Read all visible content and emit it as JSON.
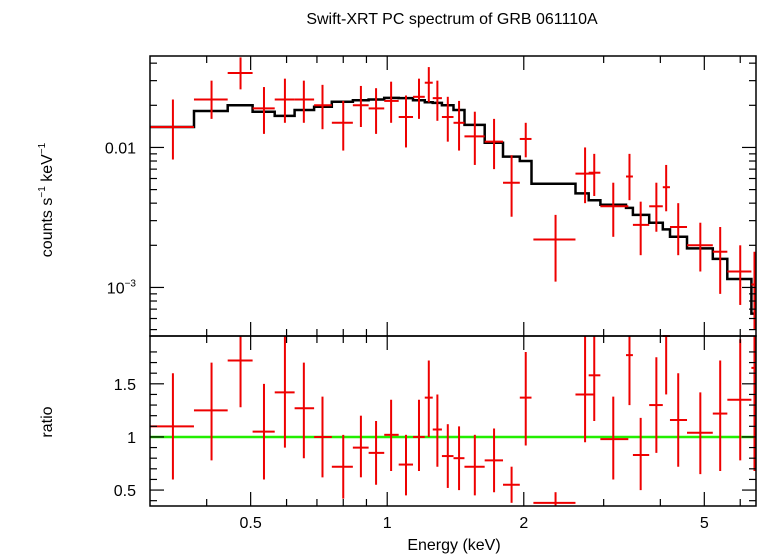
{
  "chart_data": [
    {
      "type": "scatter",
      "panel": "spectrum",
      "title": "Swift-XRT PC spectrum of GRB 061110A",
      "xlabel": "",
      "ylabel_main": "counts s",
      "ylabel_sup1": "−1",
      "ylabel_mid": " keV",
      "ylabel_sup2": "−1",
      "x_scale": "log",
      "y_scale": "log",
      "xlim": [
        0.3,
        6.5
      ],
      "ylim": [
        0.00045,
        0.045
      ],
      "y_ticks": [
        {
          "value": 0.01,
          "label": "0.01",
          "sup": ""
        },
        {
          "value": 0.001,
          "label": "10",
          "sup": "−3"
        }
      ],
      "data_color": "#ee0000",
      "model_color": "#000000",
      "series": [
        {
          "name": "data",
          "points": [
            {
              "x": 0.337,
              "xlo": 0.3,
              "xhi": 0.375,
              "y": 0.014,
              "ylo": 0.0082,
              "yhi": 0.022
            },
            {
              "x": 0.41,
              "xlo": 0.375,
              "xhi": 0.445,
              "y": 0.022,
              "ylo": 0.016,
              "yhi": 0.03
            },
            {
              "x": 0.475,
              "xlo": 0.445,
              "xhi": 0.505,
              "y": 0.034,
              "ylo": 0.026,
              "yhi": 0.044
            },
            {
              "x": 0.535,
              "xlo": 0.505,
              "xhi": 0.565,
              "y": 0.019,
              "ylo": 0.0125,
              "yhi": 0.027
            },
            {
              "x": 0.595,
              "xlo": 0.565,
              "xhi": 0.625,
              "y": 0.022,
              "ylo": 0.015,
              "yhi": 0.031
            },
            {
              "x": 0.655,
              "xlo": 0.625,
              "xhi": 0.69,
              "y": 0.022,
              "ylo": 0.015,
              "yhi": 0.03
            },
            {
              "x": 0.72,
              "xlo": 0.69,
              "xhi": 0.755,
              "y": 0.02,
              "ylo": 0.0135,
              "yhi": 0.028
            },
            {
              "x": 0.8,
              "xlo": 0.755,
              "xhi": 0.84,
              "y": 0.015,
              "ylo": 0.0095,
              "yhi": 0.0215
            },
            {
              "x": 0.875,
              "xlo": 0.84,
              "xhi": 0.91,
              "y": 0.02,
              "ylo": 0.014,
              "yhi": 0.0275
            },
            {
              "x": 0.945,
              "xlo": 0.91,
              "xhi": 0.985,
              "y": 0.019,
              "ylo": 0.0125,
              "yhi": 0.0265
            },
            {
              "x": 1.02,
              "xlo": 0.985,
              "xhi": 1.06,
              "y": 0.0215,
              "ylo": 0.015,
              "yhi": 0.0295
            },
            {
              "x": 1.1,
              "xlo": 1.06,
              "xhi": 1.14,
              "y": 0.0165,
              "ylo": 0.01,
              "yhi": 0.0235
            },
            {
              "x": 1.175,
              "xlo": 1.14,
              "xhi": 1.21,
              "y": 0.023,
              "ylo": 0.016,
              "yhi": 0.031
            },
            {
              "x": 1.235,
              "xlo": 1.21,
              "xhi": 1.26,
              "y": 0.029,
              "ylo": 0.021,
              "yhi": 0.0375
            },
            {
              "x": 1.29,
              "xlo": 1.26,
              "xhi": 1.32,
              "y": 0.0225,
              "ylo": 0.0155,
              "yhi": 0.03
            },
            {
              "x": 1.36,
              "xlo": 1.32,
              "xhi": 1.4,
              "y": 0.0165,
              "ylo": 0.011,
              "yhi": 0.023
            },
            {
              "x": 1.44,
              "xlo": 1.4,
              "xhi": 1.48,
              "y": 0.015,
              "ylo": 0.0095,
              "yhi": 0.0215
            },
            {
              "x": 1.56,
              "xlo": 1.48,
              "xhi": 1.64,
              "y": 0.012,
              "ylo": 0.0075,
              "yhi": 0.018
            },
            {
              "x": 1.72,
              "xlo": 1.64,
              "xhi": 1.8,
              "y": 0.011,
              "ylo": 0.007,
              "yhi": 0.016
            },
            {
              "x": 1.88,
              "xlo": 1.8,
              "xhi": 1.96,
              "y": 0.0056,
              "ylo": 0.0032,
              "yhi": 0.0088
            },
            {
              "x": 2.02,
              "xlo": 1.96,
              "xhi": 2.08,
              "y": 0.0115,
              "ylo": 0.0085,
              "yhi": 0.015
            },
            {
              "x": 2.35,
              "xlo": 2.1,
              "xhi": 2.6,
              "y": 0.0022,
              "ylo": 0.0011,
              "yhi": 0.0033
            },
            {
              "x": 2.73,
              "xlo": 2.6,
              "xhi": 2.85,
              "y": 0.0065,
              "ylo": 0.004,
              "yhi": 0.01
            },
            {
              "x": 2.86,
              "xlo": 2.78,
              "xhi": 2.95,
              "y": 0.0066,
              "ylo": 0.0045,
              "yhi": 0.009
            },
            {
              "x": 3.15,
              "xlo": 2.95,
              "xhi": 3.4,
              "y": 0.0038,
              "ylo": 0.0023,
              "yhi": 0.0056
            },
            {
              "x": 3.42,
              "xlo": 3.36,
              "xhi": 3.48,
              "y": 0.0062,
              "ylo": 0.0042,
              "yhi": 0.009
            },
            {
              "x": 3.62,
              "xlo": 3.48,
              "xhi": 3.78,
              "y": 0.0028,
              "ylo": 0.0017,
              "yhi": 0.0041
            },
            {
              "x": 3.92,
              "xlo": 3.78,
              "xhi": 4.05,
              "y": 0.0038,
              "ylo": 0.0025,
              "yhi": 0.0056
            },
            {
              "x": 4.12,
              "xlo": 4.05,
              "xhi": 4.2,
              "y": 0.0052,
              "ylo": 0.0035,
              "yhi": 0.0075
            },
            {
              "x": 4.38,
              "xlo": 4.2,
              "xhi": 4.58,
              "y": 0.0027,
              "ylo": 0.0017,
              "yhi": 0.004
            },
            {
              "x": 4.9,
              "xlo": 4.58,
              "xhi": 5.22,
              "y": 0.002,
              "ylo": 0.0013,
              "yhi": 0.0029
            },
            {
              "x": 5.42,
              "xlo": 5.22,
              "xhi": 5.62,
              "y": 0.0018,
              "ylo": 0.0009,
              "yhi": 0.0027
            },
            {
              "x": 6.0,
              "xlo": 5.62,
              "xhi": 6.35,
              "y": 0.0013,
              "ylo": 0.00075,
              "yhi": 0.002
            },
            {
              "x": 6.45,
              "xlo": 6.35,
              "xhi": 6.5,
              "y": 0.00105,
              "ylo": 0.0005,
              "yhi": 0.0018
            }
          ]
        },
        {
          "name": "model",
          "steps": [
            {
              "x0": 0.3,
              "x1": 0.375,
              "y": 0.014
            },
            {
              "x0": 0.375,
              "x1": 0.445,
              "y": 0.0182
            },
            {
              "x0": 0.445,
              "x1": 0.505,
              "y": 0.02
            },
            {
              "x0": 0.505,
              "x1": 0.565,
              "y": 0.018
            },
            {
              "x0": 0.565,
              "x1": 0.625,
              "y": 0.0168
            },
            {
              "x0": 0.625,
              "x1": 0.69,
              "y": 0.0185
            },
            {
              "x0": 0.69,
              "x1": 0.755,
              "y": 0.0195
            },
            {
              "x0": 0.755,
              "x1": 0.84,
              "y": 0.0212
            },
            {
              "x0": 0.84,
              "x1": 0.91,
              "y": 0.0217
            },
            {
              "x0": 0.91,
              "x1": 0.985,
              "y": 0.022
            },
            {
              "x0": 0.985,
              "x1": 1.06,
              "y": 0.0226
            },
            {
              "x0": 1.06,
              "x1": 1.14,
              "y": 0.0225
            },
            {
              "x0": 1.14,
              "x1": 1.21,
              "y": 0.0217
            },
            {
              "x0": 1.21,
              "x1": 1.26,
              "y": 0.021
            },
            {
              "x0": 1.26,
              "x1": 1.32,
              "y": 0.0208
            },
            {
              "x0": 1.32,
              "x1": 1.4,
              "y": 0.02
            },
            {
              "x0": 1.4,
              "x1": 1.48,
              "y": 0.0185
            },
            {
              "x0": 1.48,
              "x1": 1.64,
              "y": 0.0145
            },
            {
              "x0": 1.64,
              "x1": 1.8,
              "y": 0.0108
            },
            {
              "x0": 1.8,
              "x1": 1.96,
              "y": 0.0086
            },
            {
              "x0": 1.96,
              "x1": 2.08,
              "y": 0.008
            },
            {
              "x0": 2.08,
              "x1": 2.6,
              "y": 0.0055
            },
            {
              "x0": 2.6,
              "x1": 2.78,
              "y": 0.0047
            },
            {
              "x0": 2.78,
              "x1": 2.95,
              "y": 0.0042
            },
            {
              "x0": 2.95,
              "x1": 3.36,
              "y": 0.0039
            },
            {
              "x0": 3.36,
              "x1": 3.48,
              "y": 0.0037
            },
            {
              "x0": 3.48,
              "x1": 3.78,
              "y": 0.0033
            },
            {
              "x0": 3.78,
              "x1": 4.05,
              "y": 0.0029
            },
            {
              "x0": 4.05,
              "x1": 4.2,
              "y": 0.0026
            },
            {
              "x0": 4.2,
              "x1": 4.58,
              "y": 0.0023
            },
            {
              "x0": 4.58,
              "x1": 5.22,
              "y": 0.0019
            },
            {
              "x0": 5.22,
              "x1": 5.62,
              "y": 0.0016
            },
            {
              "x0": 5.62,
              "x1": 6.35,
              "y": 0.00115
            },
            {
              "x0": 6.35,
              "x1": 6.5,
              "y": 0.00065
            }
          ]
        }
      ]
    },
    {
      "type": "scatter",
      "panel": "ratio",
      "xlabel": "Energy (keV)",
      "ylabel": "ratio",
      "x_scale": "log",
      "y_scale": "linear",
      "xlim": [
        0.3,
        6.5
      ],
      "ylim": [
        0.35,
        1.95
      ],
      "x_ticks": [
        {
          "value": 0.5,
          "label": "0.5"
        },
        {
          "value": 1,
          "label": "1"
        },
        {
          "value": 2,
          "label": "2"
        },
        {
          "value": 5,
          "label": "5"
        }
      ],
      "y_ticks": [
        {
          "value": 0.5,
          "label": "0.5"
        },
        {
          "value": 1,
          "label": "1"
        },
        {
          "value": 1.5,
          "label": "1.5"
        }
      ],
      "reference_line": {
        "y": 1,
        "color": "#22ee00"
      },
      "series": [
        {
          "name": "ratio",
          "points": [
            {
              "x": 0.337,
              "xlo": 0.3,
              "xhi": 0.375,
              "y": 1.1,
              "ylo": 0.6,
              "yhi": 1.6
            },
            {
              "x": 0.41,
              "xlo": 0.375,
              "xhi": 0.445,
              "y": 1.25,
              "ylo": 0.78,
              "yhi": 1.7
            },
            {
              "x": 0.475,
              "xlo": 0.445,
              "xhi": 0.505,
              "y": 1.72,
              "ylo": 1.28,
              "yhi": 1.95
            },
            {
              "x": 0.535,
              "xlo": 0.505,
              "xhi": 0.565,
              "y": 1.05,
              "ylo": 0.6,
              "yhi": 1.5
            },
            {
              "x": 0.595,
              "xlo": 0.565,
              "xhi": 0.625,
              "y": 1.42,
              "ylo": 0.9,
              "yhi": 1.95
            },
            {
              "x": 0.655,
              "xlo": 0.625,
              "xhi": 0.69,
              "y": 1.27,
              "ylo": 0.8,
              "yhi": 1.7
            },
            {
              "x": 0.72,
              "xlo": 0.69,
              "xhi": 0.755,
              "y": 1.0,
              "ylo": 0.62,
              "yhi": 1.38
            },
            {
              "x": 0.8,
              "xlo": 0.755,
              "xhi": 0.84,
              "y": 0.72,
              "ylo": 0.42,
              "yhi": 1.02
            },
            {
              "x": 0.875,
              "xlo": 0.84,
              "xhi": 0.91,
              "y": 0.9,
              "ylo": 0.62,
              "yhi": 1.2
            },
            {
              "x": 0.945,
              "xlo": 0.91,
              "xhi": 0.985,
              "y": 0.85,
              "ylo": 0.55,
              "yhi": 1.15
            },
            {
              "x": 1.02,
              "xlo": 0.985,
              "xhi": 1.06,
              "y": 1.02,
              "ylo": 0.68,
              "yhi": 1.35
            },
            {
              "x": 1.1,
              "xlo": 1.06,
              "xhi": 1.14,
              "y": 0.74,
              "ylo": 0.45,
              "yhi": 1.02
            },
            {
              "x": 1.175,
              "xlo": 1.14,
              "xhi": 1.21,
              "y": 1.0,
              "ylo": 0.68,
              "yhi": 1.35
            },
            {
              "x": 1.235,
              "xlo": 1.21,
              "xhi": 1.26,
              "y": 1.37,
              "ylo": 1.0,
              "yhi": 1.72
            },
            {
              "x": 1.29,
              "xlo": 1.26,
              "xhi": 1.32,
              "y": 1.07,
              "ylo": 0.72,
              "yhi": 1.4
            },
            {
              "x": 1.36,
              "xlo": 1.32,
              "xhi": 1.4,
              "y": 0.82,
              "ylo": 0.52,
              "yhi": 1.12
            },
            {
              "x": 1.44,
              "xlo": 1.4,
              "xhi": 1.48,
              "y": 0.8,
              "ylo": 0.5,
              "yhi": 1.1
            },
            {
              "x": 1.56,
              "xlo": 1.48,
              "xhi": 1.64,
              "y": 0.72,
              "ylo": 0.45,
              "yhi": 1.02
            },
            {
              "x": 1.72,
              "xlo": 1.64,
              "xhi": 1.8,
              "y": 0.78,
              "ylo": 0.48,
              "yhi": 1.08
            },
            {
              "x": 1.88,
              "xlo": 1.8,
              "xhi": 1.96,
              "y": 0.55,
              "ylo": 0.38,
              "yhi": 0.72
            },
            {
              "x": 2.02,
              "xlo": 1.96,
              "xhi": 2.08,
              "y": 1.37,
              "ylo": 0.92,
              "yhi": 1.8
            },
            {
              "x": 2.35,
              "xlo": 2.1,
              "xhi": 2.6,
              "y": 0.38,
              "ylo": 0.35,
              "yhi": 0.48
            },
            {
              "x": 2.73,
              "xlo": 2.6,
              "xhi": 2.85,
              "y": 1.4,
              "ylo": 0.95,
              "yhi": 1.95
            },
            {
              "x": 2.86,
              "xlo": 2.78,
              "xhi": 2.95,
              "y": 1.58,
              "ylo": 1.15,
              "yhi": 1.95
            },
            {
              "x": 3.15,
              "xlo": 2.95,
              "xhi": 3.4,
              "y": 0.98,
              "ylo": 0.6,
              "yhi": 1.38
            },
            {
              "x": 3.42,
              "xlo": 3.36,
              "xhi": 3.48,
              "y": 1.77,
              "ylo": 1.3,
              "yhi": 1.95
            },
            {
              "x": 3.62,
              "xlo": 3.48,
              "xhi": 3.78,
              "y": 0.83,
              "ylo": 0.5,
              "yhi": 1.18
            },
            {
              "x": 3.92,
              "xlo": 3.78,
              "xhi": 4.05,
              "y": 1.3,
              "ylo": 0.85,
              "yhi": 1.75
            },
            {
              "x": 4.12,
              "xlo": 4.05,
              "xhi": 4.2,
              "y": 1.95,
              "ylo": 1.4,
              "yhi": 1.95
            },
            {
              "x": 4.38,
              "xlo": 4.2,
              "xhi": 4.58,
              "y": 1.16,
              "ylo": 0.72,
              "yhi": 1.6
            },
            {
              "x": 4.9,
              "xlo": 4.58,
              "xhi": 5.22,
              "y": 1.04,
              "ylo": 0.65,
              "yhi": 1.42
            },
            {
              "x": 5.42,
              "xlo": 5.22,
              "xhi": 5.62,
              "y": 1.22,
              "ylo": 0.68,
              "yhi": 1.72
            },
            {
              "x": 6.0,
              "xlo": 5.62,
              "xhi": 6.35,
              "y": 1.35,
              "ylo": 0.78,
              "yhi": 1.92
            },
            {
              "x": 6.45,
              "xlo": 6.35,
              "xhi": 6.5,
              "y": 1.65,
              "ylo": 0.68,
              "yhi": 1.95
            }
          ]
        }
      ]
    }
  ]
}
